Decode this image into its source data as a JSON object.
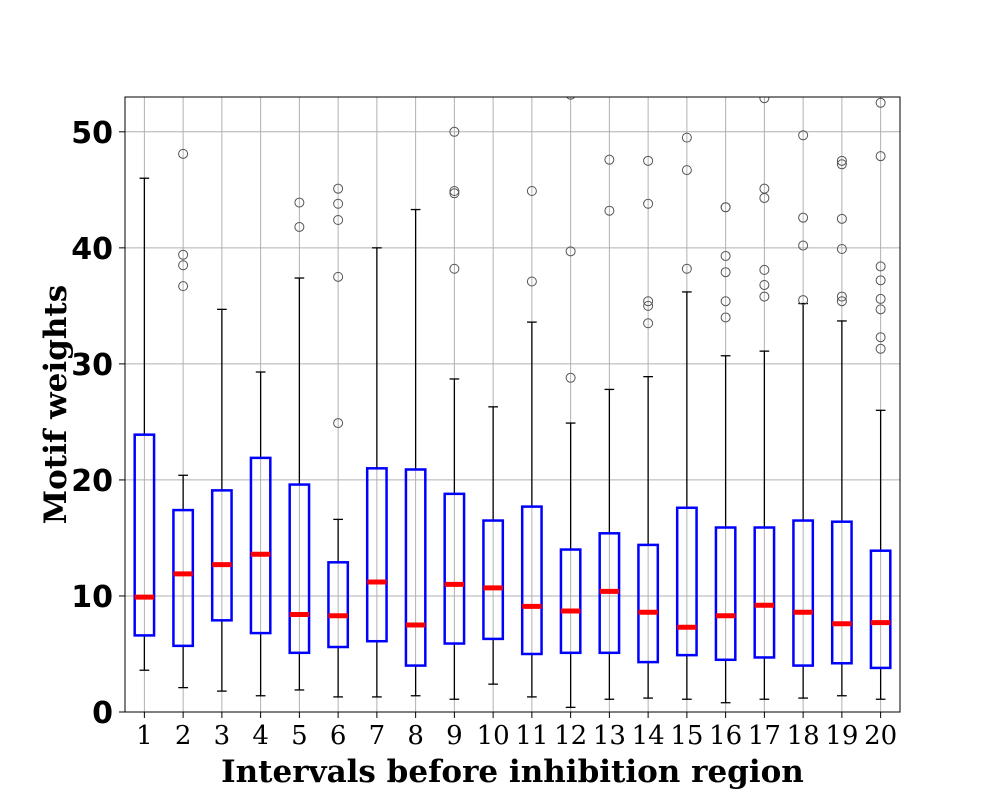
{
  "chart_data": {
    "type": "box",
    "xlabel": "Intervals before inhibition region",
    "ylabel": "Motif weights",
    "ylim": [
      0,
      53
    ],
    "yticks": [
      0,
      10,
      20,
      30,
      40,
      50
    ],
    "grid": true,
    "colors": {
      "box": "#0000ff",
      "median": "#ff0000",
      "whisker": "#000000",
      "grid": "#b0b0b0",
      "flier": "#555555"
    },
    "categories": [
      "1",
      "2",
      "3",
      "4",
      "5",
      "6",
      "7",
      "8",
      "9",
      "10",
      "11",
      "12",
      "13",
      "14",
      "15",
      "16",
      "17",
      "18",
      "19",
      "20"
    ],
    "boxes": [
      {
        "whislo": 3.6,
        "q1": 6.6,
        "med": 9.9,
        "q3": 23.9,
        "whishi": 46.0,
        "fliers": []
      },
      {
        "whislo": 2.1,
        "q1": 5.7,
        "med": 11.9,
        "q3": 17.4,
        "whishi": 20.4,
        "fliers": [
          36.7,
          38.5,
          39.4,
          48.1
        ]
      },
      {
        "whislo": 1.8,
        "q1": 7.9,
        "med": 12.7,
        "q3": 19.1,
        "whishi": 34.7,
        "fliers": []
      },
      {
        "whislo": 1.4,
        "q1": 6.8,
        "med": 13.6,
        "q3": 21.9,
        "whishi": 29.3,
        "fliers": []
      },
      {
        "whislo": 1.9,
        "q1": 5.1,
        "med": 8.4,
        "q3": 19.6,
        "whishi": 37.4,
        "fliers": [
          41.8,
          43.9
        ]
      },
      {
        "whislo": 1.3,
        "q1": 5.6,
        "med": 8.3,
        "q3": 12.9,
        "whishi": 16.6,
        "fliers": [
          24.9,
          37.5,
          42.4,
          43.8,
          45.1
        ]
      },
      {
        "whislo": 1.3,
        "q1": 6.1,
        "med": 11.2,
        "q3": 21.0,
        "whishi": 40.0,
        "fliers": []
      },
      {
        "whislo": 1.4,
        "q1": 4.0,
        "med": 7.5,
        "q3": 20.9,
        "whishi": 43.3,
        "fliers": []
      },
      {
        "whislo": 1.1,
        "q1": 5.9,
        "med": 11.0,
        "q3": 18.8,
        "whishi": 28.7,
        "fliers": [
          38.2,
          44.7,
          44.9,
          50.0
        ]
      },
      {
        "whislo": 2.4,
        "q1": 6.3,
        "med": 10.7,
        "q3": 16.5,
        "whishi": 26.3,
        "fliers": []
      },
      {
        "whislo": 1.3,
        "q1": 5.0,
        "med": 9.1,
        "q3": 17.7,
        "whishi": 33.6,
        "fliers": [
          37.1,
          44.9
        ]
      },
      {
        "whislo": 0.4,
        "q1": 5.1,
        "med": 8.7,
        "q3": 14.0,
        "whishi": 24.9,
        "fliers": [
          28.8,
          39.7,
          53.2
        ]
      },
      {
        "whislo": 1.1,
        "q1": 5.1,
        "med": 10.4,
        "q3": 15.4,
        "whishi": 27.8,
        "fliers": [
          43.2,
          47.6
        ]
      },
      {
        "whislo": 1.2,
        "q1": 4.3,
        "med": 8.6,
        "q3": 14.4,
        "whishi": 28.9,
        "fliers": [
          33.5,
          35.0,
          35.4,
          43.8,
          47.5
        ]
      },
      {
        "whislo": 1.1,
        "q1": 4.9,
        "med": 7.3,
        "q3": 17.6,
        "whishi": 36.2,
        "fliers": [
          38.2,
          46.7,
          49.5
        ]
      },
      {
        "whislo": 0.8,
        "q1": 4.5,
        "med": 8.3,
        "q3": 15.9,
        "whishi": 30.7,
        "fliers": [
          34.0,
          35.4,
          37.9,
          39.3,
          43.5,
          43.5
        ]
      },
      {
        "whislo": 1.1,
        "q1": 4.7,
        "med": 9.2,
        "q3": 15.9,
        "whishi": 31.1,
        "fliers": [
          35.8,
          36.8,
          38.1,
          44.3,
          45.1,
          52.9
        ]
      },
      {
        "whislo": 1.2,
        "q1": 4.0,
        "med": 8.6,
        "q3": 16.5,
        "whishi": 35.2,
        "fliers": [
          35.5,
          40.2,
          42.6,
          49.7
        ]
      },
      {
        "whislo": 1.4,
        "q1": 4.2,
        "med": 7.6,
        "q3": 16.4,
        "whishi": 33.7,
        "fliers": [
          35.4,
          35.8,
          39.9,
          42.5,
          47.2,
          47.5
        ]
      },
      {
        "whislo": 1.1,
        "q1": 3.8,
        "med": 7.7,
        "q3": 13.9,
        "whishi": 26.0,
        "fliers": [
          31.3,
          32.3,
          34.7,
          35.6,
          37.2,
          38.4,
          47.9,
          52.5
        ]
      }
    ]
  }
}
